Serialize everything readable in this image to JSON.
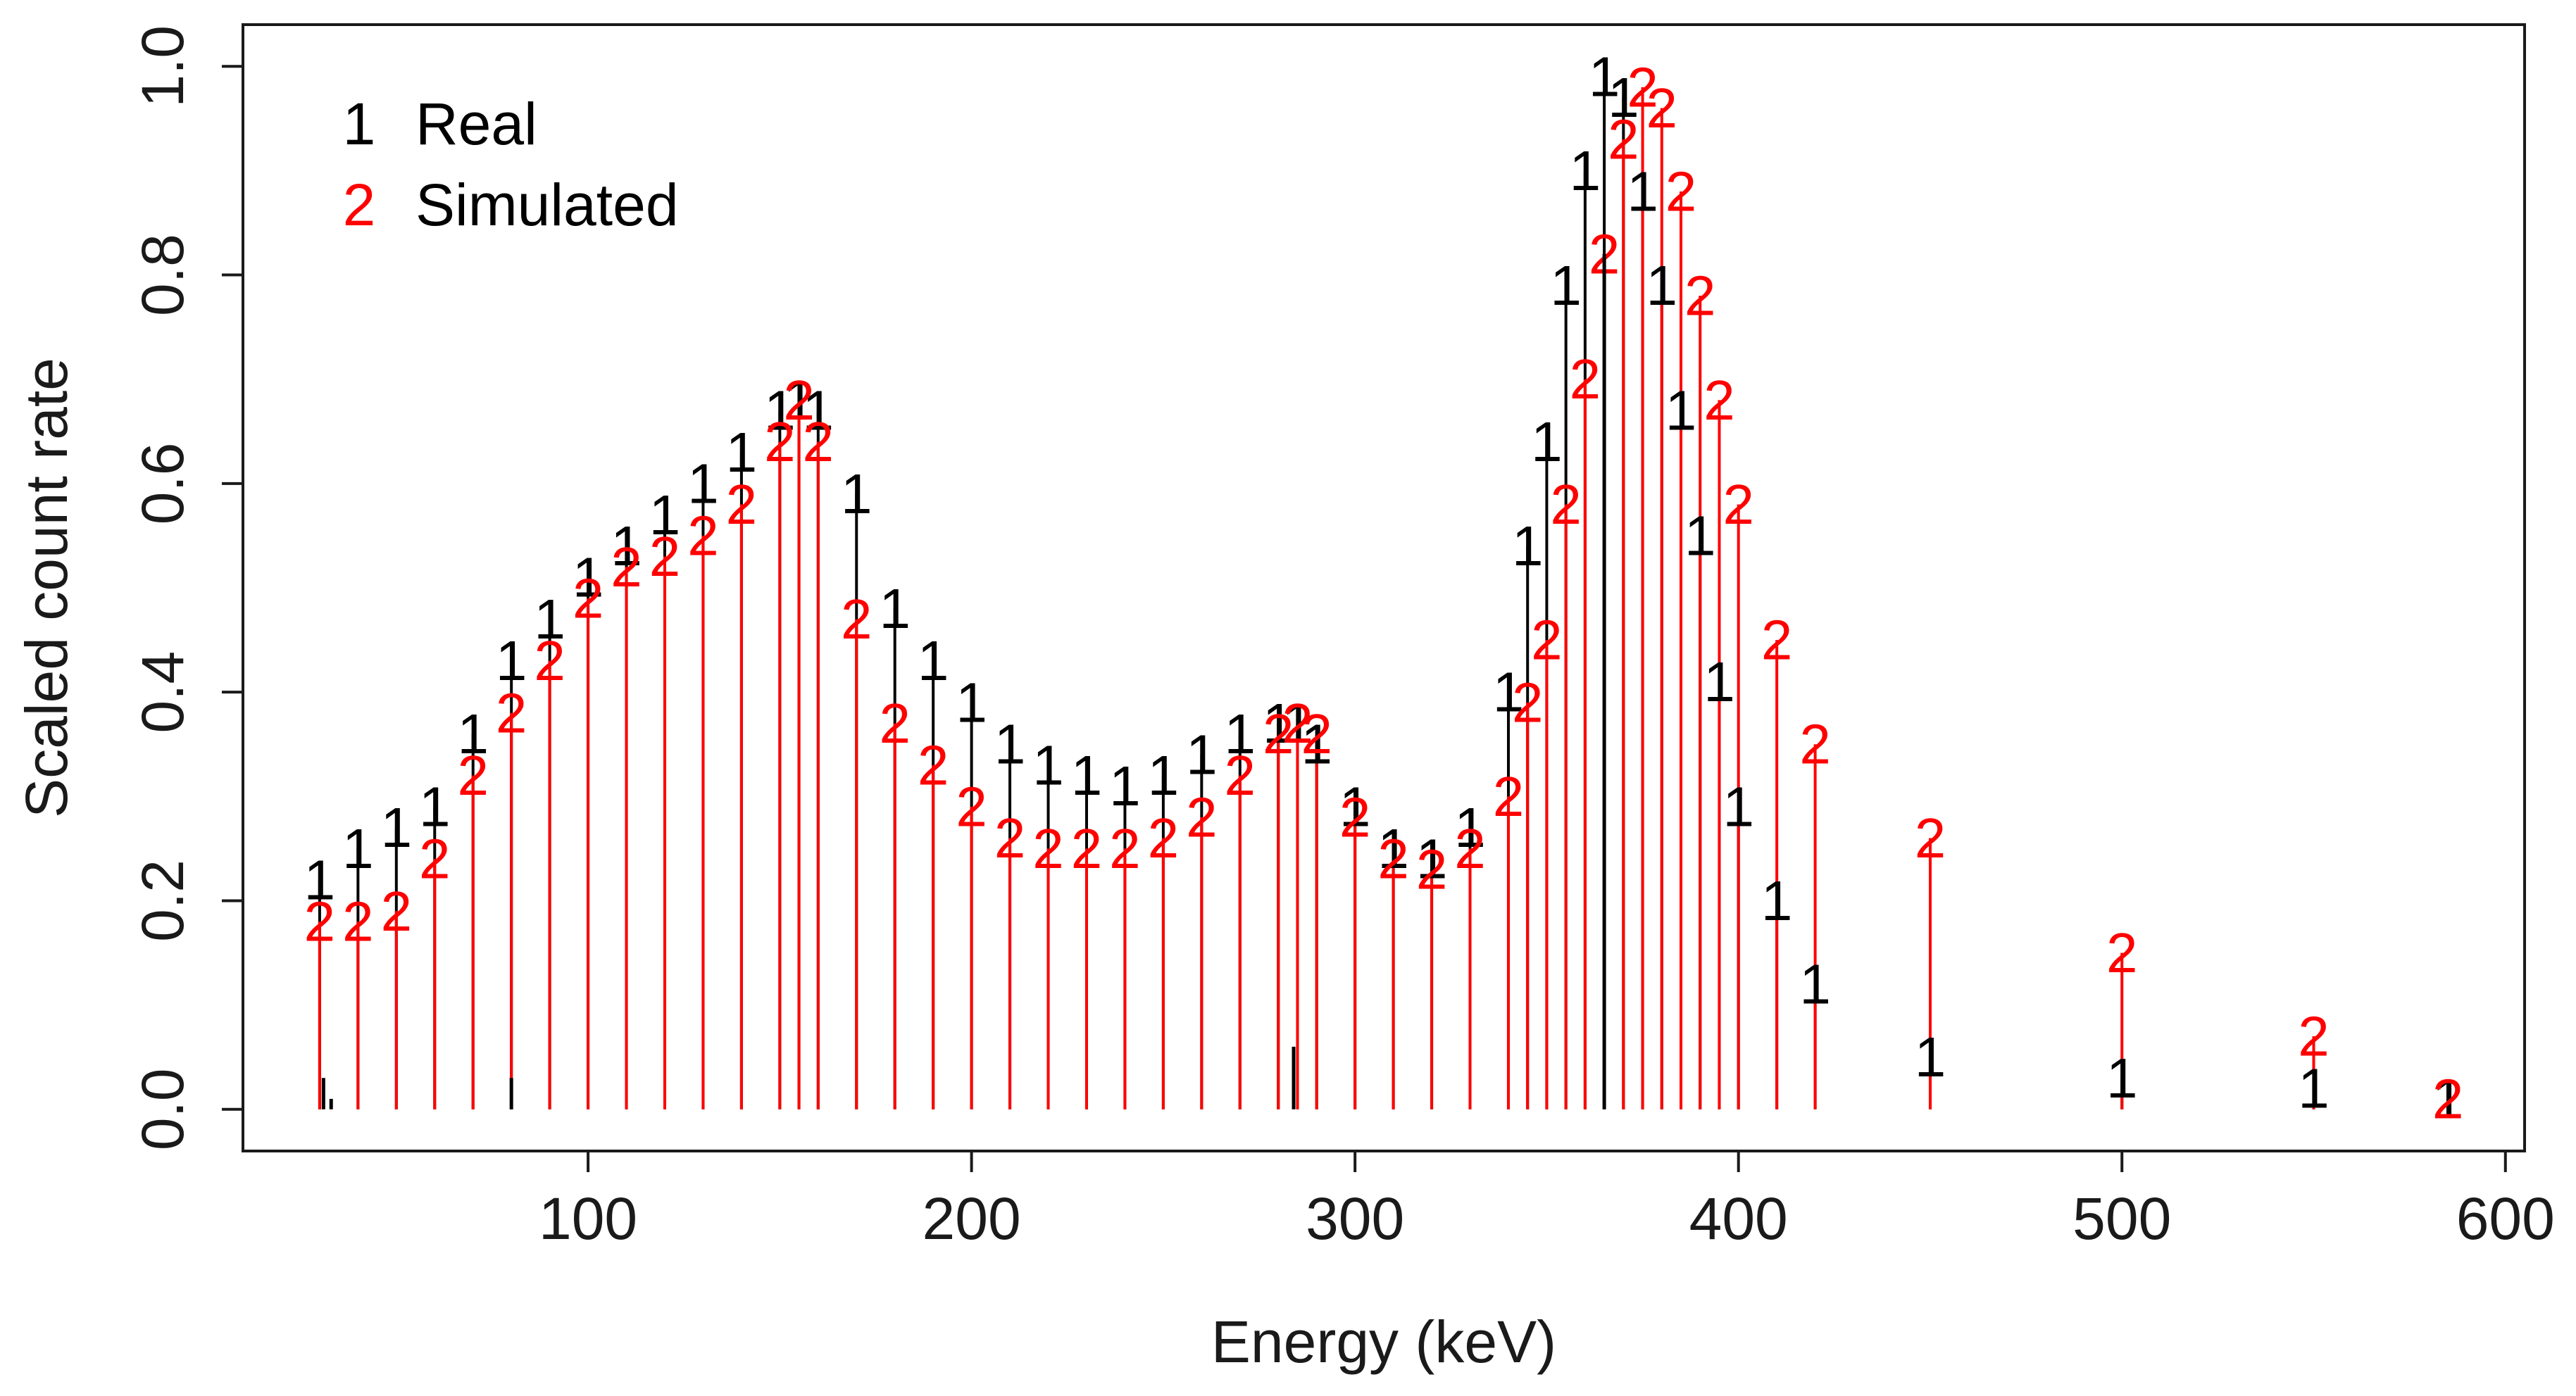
{
  "chart_data": {
    "type": "scatter",
    "xlabel": "Energy (keV)",
    "ylabel": "Scaled count rate",
    "xlim": [
      10,
      605
    ],
    "ylim": [
      -0.04,
      1.04
    ],
    "xticks": [
      100,
      200,
      300,
      400,
      500,
      600
    ],
    "xtick_labels": [
      "100",
      "200",
      "300",
      "400",
      "500",
      "600"
    ],
    "yticks": [
      0.0,
      0.2,
      0.4,
      0.6,
      0.8,
      1.0
    ],
    "ytick_labels": [
      "0.0",
      "0.2",
      "0.4",
      "0.6",
      "0.8",
      "1.0"
    ],
    "grid": false,
    "legend_position": "top-left",
    "marker_style": "numeric symbols with vertical drop lines to zero",
    "series": [
      {
        "name": "Real",
        "symbol": "1",
        "color": "#000000",
        "x": [
          30,
          40,
          50,
          60,
          70,
          80,
          90,
          100,
          110,
          120,
          130,
          140,
          150,
          155,
          160,
          170,
          180,
          190,
          200,
          210,
          220,
          230,
          240,
          250,
          260,
          270,
          280,
          285,
          290,
          300,
          310,
          320,
          330,
          340,
          345,
          350,
          355,
          360,
          365,
          370,
          375,
          380,
          385,
          390,
          395,
          400,
          410,
          420,
          450,
          500,
          550,
          585
        ],
        "y": [
          0.22,
          0.25,
          0.27,
          0.29,
          0.36,
          0.43,
          0.47,
          0.51,
          0.54,
          0.57,
          0.6,
          0.63,
          0.67,
          0.68,
          0.67,
          0.59,
          0.48,
          0.43,
          0.39,
          0.35,
          0.33,
          0.32,
          0.31,
          0.32,
          0.34,
          0.36,
          0.37,
          0.37,
          0.35,
          0.29,
          0.25,
          0.24,
          0.27,
          0.4,
          0.54,
          0.64,
          0.79,
          0.9,
          0.99,
          0.97,
          0.88,
          0.79,
          0.67,
          0.55,
          0.41,
          0.29,
          0.2,
          0.12,
          0.05,
          0.03,
          0.02,
          0.01
        ]
      },
      {
        "name": "Simulated",
        "symbol": "2",
        "color": "#ff0000",
        "x": [
          30,
          40,
          50,
          60,
          70,
          80,
          90,
          100,
          110,
          120,
          130,
          140,
          150,
          155,
          160,
          170,
          180,
          190,
          200,
          210,
          220,
          230,
          240,
          250,
          260,
          270,
          280,
          285,
          290,
          300,
          310,
          320,
          330,
          340,
          345,
          350,
          355,
          360,
          365,
          370,
          375,
          380,
          385,
          390,
          395,
          400,
          410,
          420,
          450,
          500,
          550,
          585
        ],
        "y": [
          0.18,
          0.18,
          0.19,
          0.24,
          0.32,
          0.38,
          0.43,
          0.49,
          0.52,
          0.53,
          0.55,
          0.58,
          0.64,
          0.68,
          0.64,
          0.47,
          0.37,
          0.33,
          0.29,
          0.26,
          0.25,
          0.25,
          0.25,
          0.26,
          0.28,
          0.32,
          0.36,
          0.37,
          0.36,
          0.28,
          0.24,
          0.23,
          0.25,
          0.3,
          0.39,
          0.45,
          0.58,
          0.7,
          0.82,
          0.93,
          0.98,
          0.96,
          0.88,
          0.78,
          0.68,
          0.58,
          0.45,
          0.35,
          0.26,
          0.15,
          0.07,
          0.01
        ]
      }
    ],
    "vertical_marker_lines": [
      {
        "x": 31,
        "y": 0.03
      },
      {
        "x": 33,
        "y": 0.01
      },
      {
        "x": 80,
        "y": 0.03
      },
      {
        "x": 284,
        "y": 0.06
      },
      {
        "x": 365,
        "y": 0.82
      }
    ]
  }
}
